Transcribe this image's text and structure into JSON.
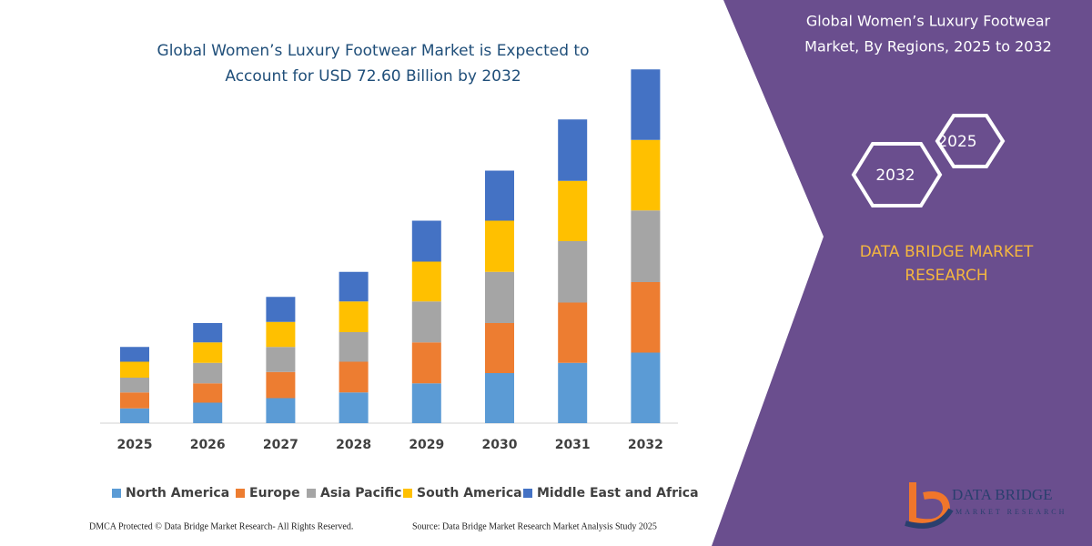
{
  "chart_data": {
    "type": "stacked-bar",
    "title": [
      "Global Women’s Luxury Footwear Market is Expected to",
      "Account for USD 72.60 Billion by 2032"
    ],
    "categories": [
      "2025",
      "2026",
      "2027",
      "2028",
      "2029",
      "2030",
      "2031",
      "2032"
    ],
    "series": [
      {
        "name": "North America",
        "color": "#5b9bd5",
        "values": [
          13,
          18,
          22,
          27,
          35,
          44,
          53,
          62
        ]
      },
      {
        "name": "Europe",
        "color": "#ed7d31",
        "values": [
          14,
          17,
          23,
          27,
          36,
          44,
          53,
          62
        ]
      },
      {
        "name": "Asia Pacific",
        "color": "#a5a5a5",
        "values": [
          13,
          18,
          22,
          26,
          36,
          45,
          54,
          63
        ]
      },
      {
        "name": "South America",
        "color": "#ffc000",
        "values": [
          14,
          18,
          22,
          27,
          35,
          45,
          53,
          62
        ]
      },
      {
        "name": "Middle East and Africa",
        "color": "#4472c4",
        "values": [
          13,
          17,
          22,
          26,
          36,
          44,
          54,
          62
        ]
      }
    ],
    "ylim": [
      0,
      320
    ]
  },
  "panel": {
    "title": [
      "Global Women’s Luxury Footwear",
      "Market, By Regions, 2025 to 2032"
    ],
    "hexagons": [
      "2025",
      "2032"
    ],
    "brand": [
      "DATA BRIDGE MARKET",
      "RESEARCH"
    ],
    "logo": [
      "DATA BRIDGE",
      "MARKET RESEARCH"
    ]
  },
  "footer": {
    "left": "DMCA Protected © Data Bridge Market Research- All Rights Reserved.",
    "right": "Source: Data Bridge Market Research Market Analysis Study 2025"
  }
}
